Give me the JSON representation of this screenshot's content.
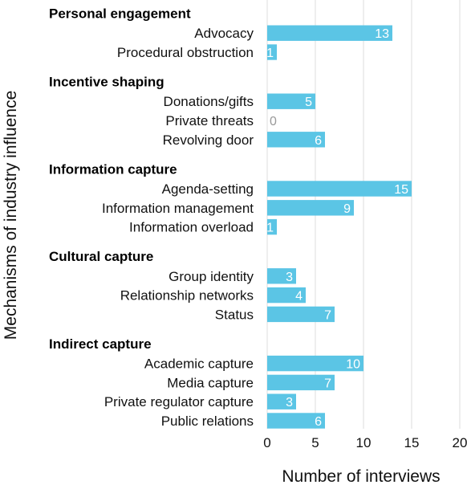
{
  "chart_data": {
    "type": "bar",
    "orientation": "horizontal",
    "xlabel": "Number of interviews",
    "ylabel": "Mechanisms of industry influence",
    "xlim": [
      0,
      20
    ],
    "xticks": [
      0,
      5,
      10,
      15,
      20
    ],
    "grid": "vertical",
    "bar_color": "#5bc5e5",
    "groups": [
      {
        "name": "Personal engagement",
        "categories": [
          "Advocacy",
          "Procedural obstruction"
        ],
        "values": [
          13,
          1
        ]
      },
      {
        "name": "Incentive shaping",
        "categories": [
          "Donations/gifts",
          "Private threats",
          "Revolving door"
        ],
        "values": [
          5,
          0,
          6
        ]
      },
      {
        "name": "Information capture",
        "categories": [
          "Agenda-setting",
          "Information management",
          "Information overload"
        ],
        "values": [
          15,
          9,
          1
        ]
      },
      {
        "name": "Cultural capture",
        "categories": [
          "Group identity",
          "Relationship networks",
          "Status"
        ],
        "values": [
          3,
          4,
          7
        ]
      },
      {
        "name": "Indirect capture",
        "categories": [
          "Academic capture",
          "Media capture",
          "Private regulator capture",
          "Public relations"
        ],
        "values": [
          10,
          7,
          3,
          6
        ]
      }
    ]
  }
}
